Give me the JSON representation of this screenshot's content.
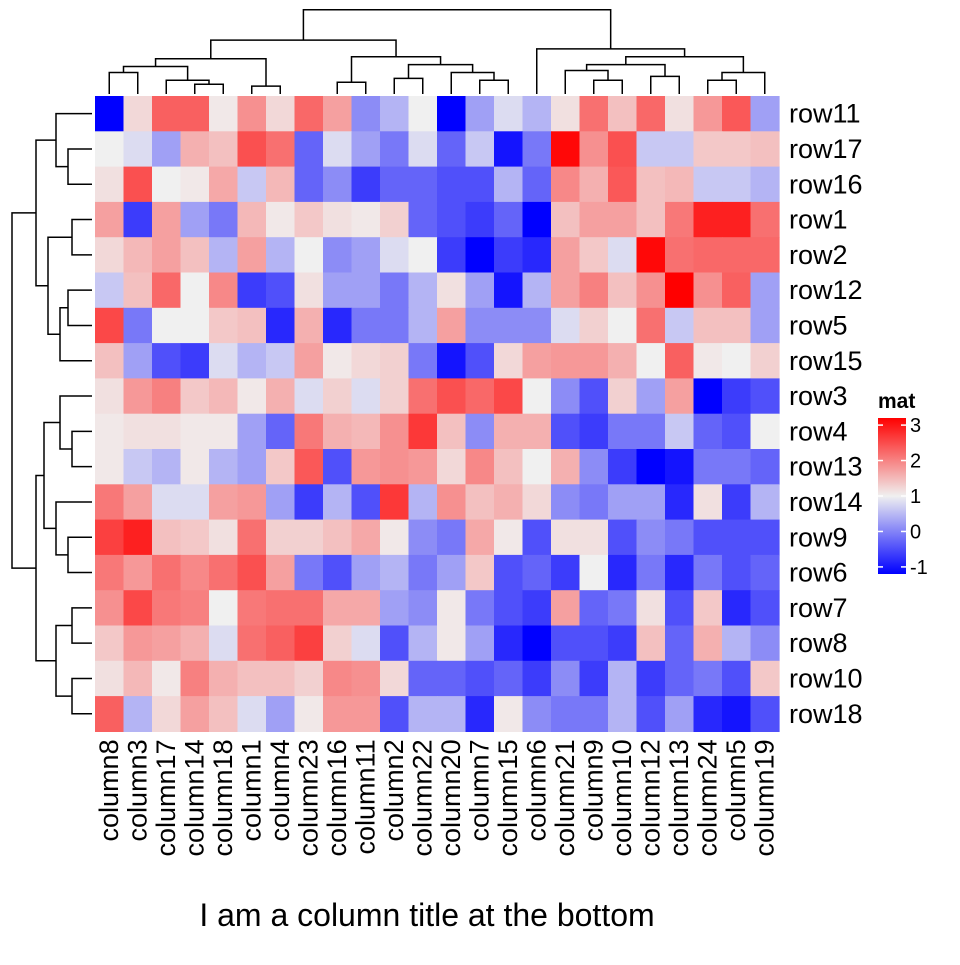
{
  "chart_data": {
    "type": "heatmap",
    "column_title": "I am a column title at the bottom",
    "legend": {
      "title": "mat",
      "ticks": [
        3,
        2,
        1,
        0,
        -1
      ],
      "tick_labels": [
        "3",
        "2",
        "1",
        "0",
        "-1"
      ],
      "range": [
        -1.2,
        3.2
      ],
      "colors": {
        "low": "#0000ff",
        "mid": "#f0f0f0",
        "high": "#ff0000"
      },
      "placement": "right"
    },
    "columns": [
      "column8",
      "column3",
      "column17",
      "column14",
      "column18",
      "column1",
      "column4",
      "column23",
      "column16",
      "column11",
      "column2",
      "column22",
      "column20",
      "column7",
      "column15",
      "column6",
      "column21",
      "column9",
      "column10",
      "column12",
      "column13",
      "column24",
      "column5",
      "column19"
    ],
    "rows": [
      "row11",
      "row17",
      "row16",
      "row1",
      "row2",
      "row12",
      "row5",
      "row15",
      "row3",
      "row4",
      "row13",
      "row14",
      "row9",
      "row6",
      "row7",
      "row8",
      "row10",
      "row18"
    ],
    "values": [
      [
        -1.2,
        0.3,
        1.8,
        1.8,
        0.1,
        1.2,
        0.3,
        1.7,
        1.0,
        -0.5,
        -0.3,
        0.0,
        -1.2,
        -0.4,
        -0.1,
        -0.3,
        0.2,
        1.6,
        0.6,
        1.7,
        0.2,
        1.1,
        1.9,
        -0.4
      ],
      [
        0.0,
        -0.1,
        -0.4,
        0.8,
        0.6,
        2.0,
        1.6,
        -0.7,
        -0.1,
        -0.4,
        -0.6,
        -0.1,
        -0.7,
        -0.2,
        -1.1,
        -0.6,
        2.9,
        1.2,
        2.0,
        -0.2,
        -0.2,
        0.5,
        0.5,
        0.6
      ],
      [
        0.2,
        2.0,
        0.0,
        0.1,
        0.9,
        -0.2,
        0.7,
        -0.7,
        -0.5,
        -0.9,
        -0.7,
        -0.7,
        -0.8,
        -0.8,
        -0.3,
        -0.7,
        1.3,
        0.8,
        1.9,
        0.6,
        0.7,
        -0.2,
        -0.2,
        -0.3
      ],
      [
        1.0,
        -0.9,
        1.0,
        -0.4,
        -0.6,
        0.7,
        0.1,
        0.5,
        0.2,
        0.1,
        0.4,
        -0.7,
        -0.8,
        -0.9,
        -0.7,
        -1.2,
        0.6,
        1.0,
        1.0,
        0.6,
        1.5,
        2.6,
        2.6,
        1.6
      ],
      [
        0.3,
        0.7,
        1.0,
        0.6,
        -0.3,
        1.0,
        -0.3,
        0.0,
        -0.5,
        -0.4,
        -0.1,
        0.0,
        -0.9,
        -1.2,
        -0.9,
        -1.0,
        1.0,
        0.5,
        -0.1,
        2.9,
        1.6,
        1.7,
        1.7,
        1.7
      ],
      [
        -0.2,
        0.6,
        1.7,
        0.0,
        1.3,
        -0.9,
        -0.8,
        0.2,
        -0.4,
        -0.4,
        -0.6,
        -0.3,
        0.2,
        -0.4,
        -1.1,
        -0.3,
        1.0,
        1.4,
        0.6,
        1.2,
        3.0,
        1.2,
        1.8,
        -0.4
      ],
      [
        2.1,
        -0.6,
        0.0,
        0.0,
        0.5,
        0.6,
        -1.0,
        0.8,
        -1.0,
        -0.6,
        -0.6,
        -0.3,
        1.0,
        -0.5,
        -0.5,
        -0.5,
        -0.1,
        0.4,
        0.0,
        1.6,
        -0.2,
        0.6,
        0.6,
        -0.4
      ],
      [
        0.6,
        -0.4,
        -0.8,
        -0.9,
        -0.1,
        -0.3,
        -0.2,
        1.0,
        0.1,
        0.3,
        0.4,
        -0.6,
        -1.1,
        -0.8,
        0.3,
        1.0,
        1.1,
        1.1,
        0.8,
        0.0,
        1.8,
        0.1,
        0.0,
        0.4
      ],
      [
        0.2,
        1.1,
        1.4,
        0.5,
        0.7,
        0.1,
        0.8,
        -0.1,
        0.4,
        -0.1,
        0.4,
        1.6,
        2.0,
        1.7,
        2.1,
        0.0,
        -0.5,
        -0.8,
        0.4,
        -0.4,
        1.0,
        -1.2,
        -0.9,
        -0.8
      ],
      [
        0.1,
        0.2,
        0.2,
        0.1,
        0.1,
        -0.4,
        -0.7,
        1.5,
        0.8,
        0.7,
        1.2,
        2.3,
        0.6,
        -0.5,
        0.8,
        0.8,
        -0.8,
        -0.9,
        -0.6,
        -0.6,
        -0.2,
        -0.7,
        -0.8,
        0.0
      ],
      [
        0.1,
        -0.2,
        -0.3,
        0.1,
        -0.3,
        -0.4,
        0.5,
        1.9,
        -0.8,
        1.1,
        1.2,
        1.1,
        0.3,
        1.3,
        0.6,
        0.0,
        0.8,
        -0.5,
        -0.9,
        -1.2,
        -1.1,
        -0.6,
        -0.6,
        -0.7
      ],
      [
        1.5,
        1.0,
        -0.1,
        -0.1,
        1.0,
        1.1,
        -0.4,
        -0.9,
        -0.3,
        -0.8,
        2.3,
        -0.3,
        1.2,
        0.6,
        0.8,
        0.3,
        -0.5,
        -0.6,
        -0.4,
        -0.4,
        -1.0,
        0.2,
        -0.9,
        -0.3
      ],
      [
        2.2,
        2.6,
        0.6,
        0.5,
        0.2,
        1.6,
        0.4,
        0.4,
        0.6,
        0.9,
        0.1,
        -0.5,
        -0.6,
        0.9,
        0.1,
        -0.8,
        0.2,
        0.2,
        -0.8,
        -0.5,
        -0.6,
        -0.8,
        -0.8,
        -0.8
      ],
      [
        1.5,
        1.1,
        1.6,
        1.3,
        1.6,
        2.0,
        1.0,
        -0.6,
        -0.8,
        -0.4,
        -0.3,
        -0.6,
        -0.4,
        0.5,
        -0.8,
        -0.7,
        -0.9,
        0.0,
        -1.0,
        -0.6,
        -1.0,
        -0.6,
        -0.8,
        -0.7
      ],
      [
        1.2,
        2.1,
        1.5,
        1.4,
        0.0,
        1.5,
        1.6,
        1.6,
        0.9,
        0.9,
        -0.4,
        -0.5,
        0.1,
        -0.6,
        -0.8,
        -0.9,
        1.0,
        -0.7,
        -0.6,
        0.2,
        -0.8,
        0.5,
        -1.0,
        -0.8
      ],
      [
        0.5,
        1.1,
        1.0,
        0.8,
        -0.1,
        1.6,
        1.8,
        2.2,
        0.4,
        -0.1,
        -0.8,
        -0.3,
        0.1,
        -0.4,
        -1.0,
        -1.2,
        -0.8,
        -0.8,
        -0.9,
        0.6,
        -0.7,
        0.8,
        -0.3,
        -0.5
      ],
      [
        0.2,
        0.7,
        0.1,
        1.4,
        0.8,
        0.6,
        0.6,
        0.4,
        1.3,
        1.2,
        0.3,
        -0.7,
        -0.7,
        -0.8,
        -0.7,
        -0.9,
        -0.5,
        -0.9,
        -0.3,
        -0.9,
        -0.7,
        -0.6,
        -0.8,
        0.5
      ],
      [
        1.8,
        -0.3,
        0.3,
        1.0,
        0.6,
        -0.1,
        -0.4,
        0.1,
        1.1,
        1.1,
        -0.8,
        -0.3,
        -0.3,
        -1.0,
        0.1,
        -0.5,
        -0.6,
        -0.6,
        -0.3,
        -0.8,
        -0.4,
        -1.0,
        -1.1,
        -0.8
      ]
    ]
  }
}
